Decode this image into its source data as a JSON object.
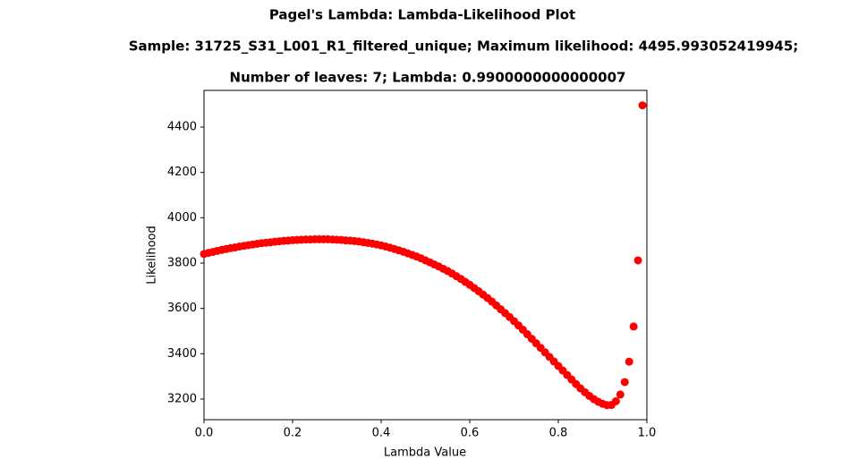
{
  "chart_data": {
    "type": "scatter",
    "title_lines": [
      "Pagel's Lambda: Lambda-Likelihood Plot",
      "Sample: 31725_S31_L001_R1_filtered_unique; Maximum likelihood: 4495.993052419945;",
      "Number of leaves: 7; Lambda: 0.9900000000000007"
    ],
    "x_label": "Lambda Value",
    "y_label": "Likelihood",
    "x": [
      0.0,
      0.01,
      0.02,
      0.03,
      0.04,
      0.05,
      0.06,
      0.07,
      0.08,
      0.09,
      0.1,
      0.11,
      0.12,
      0.13,
      0.14,
      0.15,
      0.16,
      0.17,
      0.18,
      0.19,
      0.2,
      0.21,
      0.22,
      0.23,
      0.24,
      0.25,
      0.26,
      0.27,
      0.28,
      0.29,
      0.3,
      0.31,
      0.32,
      0.33,
      0.34,
      0.35,
      0.36,
      0.37,
      0.38,
      0.39,
      0.4,
      0.41,
      0.42,
      0.43,
      0.44,
      0.45,
      0.46,
      0.47,
      0.48,
      0.49,
      0.5,
      0.51,
      0.52,
      0.53,
      0.54,
      0.55,
      0.56,
      0.57,
      0.58,
      0.59,
      0.6,
      0.61,
      0.62,
      0.63,
      0.64,
      0.65,
      0.66,
      0.67,
      0.68,
      0.69,
      0.7,
      0.71,
      0.72,
      0.73,
      0.74,
      0.75,
      0.76,
      0.77,
      0.78,
      0.79,
      0.8,
      0.81,
      0.82,
      0.83,
      0.84,
      0.85,
      0.86,
      0.87,
      0.88,
      0.89,
      0.9,
      0.91,
      0.92,
      0.93,
      0.94,
      0.95,
      0.96,
      0.97,
      0.98,
      0.99
    ],
    "values": [
      3840,
      3845,
      3849,
      3854,
      3858,
      3862,
      3866,
      3869,
      3873,
      3876,
      3879,
      3882,
      3885,
      3888,
      3890,
      3892,
      3894,
      3896,
      3898,
      3899,
      3901,
      3902,
      3903,
      3904,
      3904,
      3905,
      3905,
      3905,
      3905,
      3904,
      3903,
      3902,
      3900,
      3899,
      3897,
      3895,
      3892,
      3889,
      3886,
      3882,
      3878,
      3873,
      3868,
      3862,
      3856,
      3850,
      3843,
      3836,
      3829,
      3821,
      3812,
      3803,
      3794,
      3785,
      3775,
      3765,
      3754,
      3742,
      3730,
      3717,
      3704,
      3690,
      3676,
      3661,
      3646,
      3630,
      3613,
      3596,
      3579,
      3562,
      3544,
      3525,
      3506,
      3486,
      3466,
      3446,
      3426,
      3406,
      3386,
      3366,
      3346,
      3326,
      3306,
      3286,
      3266,
      3247,
      3230,
      3214,
      3200,
      3188,
      3179,
      3173,
      3174,
      3190,
      3220,
      3275,
      3365,
      3520,
      3812,
      4495.99
    ],
    "color": "red",
    "xlim": [
      0,
      1
    ],
    "xticks": [
      {
        "value": 0,
        "label": "0.0"
      },
      0.2,
      0.4,
      0.6,
      0.8,
      {
        "value": 1,
        "label": "1.0"
      }
    ],
    "ylim": [
      3109,
      4562
    ],
    "yticks": [
      3200,
      3400,
      3600,
      3800,
      4000,
      4200,
      4400
    ]
  }
}
